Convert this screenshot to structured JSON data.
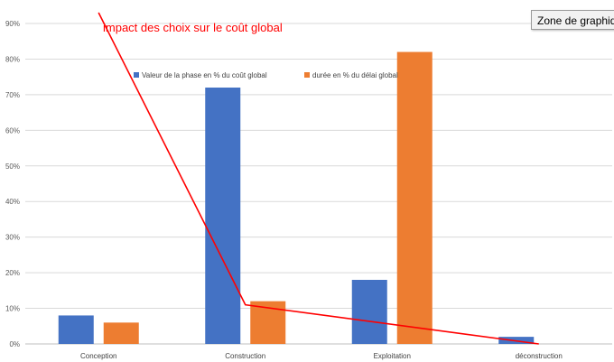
{
  "chart_data": {
    "type": "bar",
    "categories": [
      "Conception",
      "Construction",
      "Exploitation",
      "déconstruction"
    ],
    "series": [
      {
        "name": "Valeur de la phase en % du coût global",
        "color": "#4472c4",
        "values": [
          8,
          72,
          18,
          2
        ]
      },
      {
        "name": "durée en % du délai global",
        "color": "#ed7d31",
        "values": [
          6,
          12,
          82,
          0
        ]
      }
    ],
    "ylim": [
      0,
      90
    ],
    "yticks": [
      0,
      10,
      20,
      30,
      40,
      50,
      60,
      70,
      80,
      90
    ],
    "ytick_labels": [
      "0%",
      "10%",
      "20%",
      "30%",
      "40%",
      "50%",
      "60%",
      "70%",
      "80%",
      "90%"
    ],
    "grid": true,
    "legend_position": "top",
    "annotation": {
      "text": "impact des choix sur le coût global",
      "color": "#ff0000",
      "line": [
        {
          "x": "Conception",
          "y": 93
        },
        {
          "x": "Construction",
          "y": 11
        },
        {
          "x": "déconstruction",
          "y": 0
        }
      ]
    }
  },
  "tooltip": {
    "text": "Zone de graphique"
  }
}
